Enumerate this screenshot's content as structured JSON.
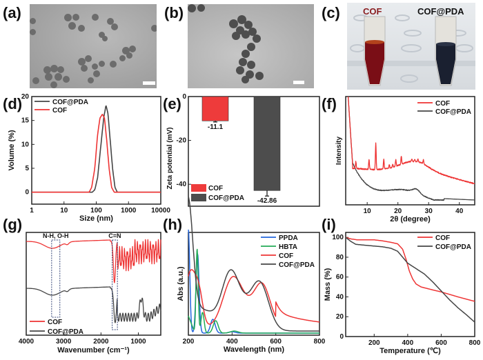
{
  "panels": {
    "a": {
      "label": "(a)",
      "kind": "TEM image"
    },
    "b": {
      "label": "(b)",
      "kind": "TEM image"
    },
    "c": {
      "label": "(c)",
      "kind": "photo",
      "vial_labels": [
        "COF",
        "COF@PDA"
      ]
    },
    "d": {
      "label": "(d)"
    },
    "e": {
      "label": "(e)"
    },
    "f": {
      "label": "(f)"
    },
    "g": {
      "label": "(g)"
    },
    "h": {
      "label": "(h)"
    },
    "i": {
      "label": "(i)"
    }
  },
  "colors": {
    "cof": "#ee3333",
    "cof_pda": "#444444",
    "ppda": "#2266dd",
    "hbta": "#22aa55",
    "cof_vial": "#7a0e16",
    "pda_vial": "#1a2030"
  },
  "chart_data": [
    {
      "id": "d",
      "type": "line",
      "title": "",
      "xlabel": "Size (nm)",
      "ylabel": "Volume (%)",
      "xscale": "log",
      "xlim": [
        1,
        10000
      ],
      "ylim": [
        -2.5,
        20
      ],
      "xticks": [
        "1",
        "10",
        "100",
        "1000",
        "10000"
      ],
      "yticks": [
        "0",
        "5",
        "10",
        "15",
        "20"
      ],
      "legend": "top-left",
      "series": [
        {
          "name": "COF@PDA",
          "color": "#444444",
          "x": [
            1,
            75,
            90,
            110,
            140,
            170,
            200,
            230,
            270,
            320,
            380,
            450,
            10000
          ],
          "y": [
            0,
            0,
            0.5,
            3,
            10,
            15.5,
            18.2,
            16.5,
            11,
            5,
            1,
            0,
            0
          ]
        },
        {
          "name": "COF",
          "color": "#ee3333",
          "x": [
            1,
            60,
            72,
            90,
            110,
            130,
            155,
            180,
            210,
            250,
            300,
            360,
            10000
          ],
          "y": [
            0,
            0,
            1,
            5,
            12,
            15.5,
            16.3,
            15.5,
            11,
            5,
            1,
            0,
            0
          ]
        }
      ]
    },
    {
      "id": "e",
      "type": "bar",
      "title": "",
      "xlabel": "",
      "ylabel": "Zeta potential (mV)",
      "ylim": [
        -50,
        0
      ],
      "yticks": [
        "0",
        "-20",
        "-40"
      ],
      "categories": [
        "COF",
        "COF@PDA"
      ],
      "values": [
        -11.1,
        -42.86
      ],
      "errors": [
        0.5,
        2.5
      ],
      "data_labels": [
        "-11.1",
        "-42.86"
      ],
      "bar_colors": [
        "#ee3b3b",
        "#4d4d4d"
      ],
      "legend": "bottom-left"
    },
    {
      "id": "f",
      "type": "line",
      "title": "",
      "xlabel": "2θ (degree)",
      "ylabel": "Intensity",
      "xlim": [
        3,
        45
      ],
      "xticks": [
        "10",
        "20",
        "30",
        "40"
      ],
      "legend": "top-right",
      "series": [
        {
          "name": "COF",
          "color": "#ee3333",
          "peaks_deg": [
            6.3,
            10.6,
            12.8,
            15.4,
            17.2,
            18.3,
            19.3,
            21.1,
            24.5,
            25.5,
            26.5,
            28.3
          ]
        },
        {
          "name": "COF@PDA",
          "color": "#444444",
          "feature_deg": [
            26
          ]
        }
      ]
    },
    {
      "id": "g",
      "type": "line",
      "title": "",
      "xlabel": "Wavenumber (cm⁻¹)",
      "ylabel": "",
      "xlim": [
        4000,
        400
      ],
      "xticks": [
        "4000",
        "3000",
        "2000",
        "1000"
      ],
      "annotations": [
        "N-H, O-H",
        "C=N"
      ],
      "legend": "bottom-left",
      "series": [
        {
          "name": "COF",
          "color": "#ee3333"
        },
        {
          "name": "COF@PDA",
          "color": "#444444"
        }
      ]
    },
    {
      "id": "h",
      "type": "line",
      "title": "",
      "xlabel": "Wavelength (nm)",
      "ylabel": "Abs (a.u.)",
      "xlim": [
        200,
        800
      ],
      "xticks": [
        "200",
        "400",
        "600",
        "800"
      ],
      "legend": "top-right",
      "series": [
        {
          "name": "PPDA",
          "color": "#2266dd"
        },
        {
          "name": "HBTA",
          "color": "#22aa55"
        },
        {
          "name": "COF",
          "color": "#ee3333"
        },
        {
          "name": "COF@PDA",
          "color": "#444444"
        }
      ]
    },
    {
      "id": "i",
      "type": "line",
      "title": "",
      "xlabel": "Temperature (℃)",
      "ylabel": "Mass (%)",
      "xlim": [
        30,
        800
      ],
      "ylim": [
        0,
        105
      ],
      "xticks": [
        "200",
        "400",
        "600",
        "800"
      ],
      "yticks": [
        "0",
        "20",
        "40",
        "60",
        "80",
        "100"
      ],
      "legend": "top-right",
      "series": [
        {
          "name": "COF",
          "color": "#ee3333",
          "x": [
            30,
            60,
            100,
            200,
            250,
            300,
            340,
            370,
            390,
            410,
            430,
            450,
            480,
            550,
            600,
            700,
            800
          ],
          "y": [
            100,
            98.5,
            97.5,
            97.5,
            96.5,
            95,
            93.5,
            88,
            78,
            66,
            58,
            53,
            50,
            47,
            45,
            40,
            35.5
          ]
        },
        {
          "name": "COF@PDA",
          "color": "#444444",
          "x": [
            30,
            60,
            90,
            150,
            250,
            300,
            340,
            370,
            400,
            450,
            500,
            550,
            600,
            650,
            700,
            750,
            800
          ],
          "y": [
            100,
            96,
            93,
            92,
            90.5,
            89,
            86,
            80,
            74,
            68.5,
            63,
            55,
            46,
            37,
            29,
            22,
            14.5
          ]
        }
      ]
    }
  ]
}
